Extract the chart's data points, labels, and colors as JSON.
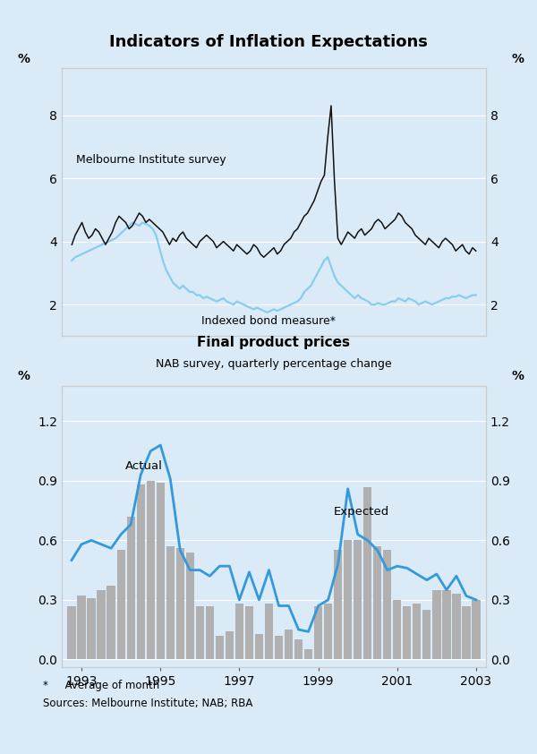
{
  "title": "Indicators of Inflation Expectations",
  "bg_color": "#daeaf7",
  "panel1": {
    "ylabel_left": "%",
    "ylabel_right": "%",
    "ylim": [
      1.0,
      9.5
    ],
    "yticks": [
      2,
      4,
      6,
      8
    ],
    "label_mi": "Melbourne Institute survey",
    "label_ib": "Indexed bond measure*",
    "mi_color": "#111111",
    "ib_color": "#87ceeb"
  },
  "panel2": {
    "title": "Final product prices",
    "subtitle": "NAB survey, quarterly percentage change",
    "ylabel_left": "%",
    "ylabel_right": "%",
    "ylim": [
      -0.04,
      1.38
    ],
    "yticks": [
      0.0,
      0.3,
      0.6,
      0.9,
      1.2
    ],
    "bar_color": "#b0b0b0",
    "line_color": "#3399dd",
    "label_actual": "Actual",
    "label_expected": "Expected"
  },
  "footnote_line1": "*     Average of month",
  "footnote_line2": "Sources: Melbourne Institute; NAB; RBA",
  "mi_x": [
    1993.0,
    1993.083,
    1993.167,
    1993.25,
    1993.333,
    1993.417,
    1993.5,
    1993.583,
    1993.667,
    1993.75,
    1993.833,
    1993.917,
    1994.0,
    1994.083,
    1994.167,
    1994.25,
    1994.333,
    1994.417,
    1994.5,
    1994.583,
    1994.667,
    1994.75,
    1994.833,
    1994.917,
    1995.0,
    1995.083,
    1995.167,
    1995.25,
    1995.333,
    1995.417,
    1995.5,
    1995.583,
    1995.667,
    1995.75,
    1995.833,
    1995.917,
    1996.0,
    1996.083,
    1996.167,
    1996.25,
    1996.333,
    1996.417,
    1996.5,
    1996.583,
    1996.667,
    1996.75,
    1996.833,
    1996.917,
    1997.0,
    1997.083,
    1997.167,
    1997.25,
    1997.333,
    1997.417,
    1997.5,
    1997.583,
    1997.667,
    1997.75,
    1997.833,
    1997.917,
    1998.0,
    1998.083,
    1998.167,
    1998.25,
    1998.333,
    1998.417,
    1998.5,
    1998.583,
    1998.667,
    1998.75,
    1998.833,
    1998.917,
    1999.0,
    1999.083,
    1999.167,
    1999.25,
    1999.333,
    1999.417,
    1999.5,
    1999.583,
    1999.667,
    1999.75,
    1999.833,
    1999.917,
    2000.0,
    2000.083,
    2000.167,
    2000.25,
    2000.333,
    2000.417,
    2000.5,
    2000.583,
    2000.667,
    2000.75,
    2000.833,
    2000.917,
    2001.0,
    2001.083,
    2001.167,
    2001.25,
    2001.333,
    2001.417,
    2001.5,
    2001.583,
    2001.667,
    2001.75,
    2001.833,
    2001.917,
    2002.0,
    2002.083,
    2002.167,
    2002.25,
    2002.333,
    2002.417,
    2002.5,
    2002.583,
    2002.667,
    2002.75,
    2002.833,
    2002.917,
    2003.0
  ],
  "mi_y": [
    3.9,
    4.2,
    4.4,
    4.6,
    4.3,
    4.1,
    4.2,
    4.4,
    4.3,
    4.1,
    3.9,
    4.1,
    4.3,
    4.6,
    4.8,
    4.7,
    4.6,
    4.4,
    4.5,
    4.7,
    4.9,
    4.8,
    4.6,
    4.7,
    4.6,
    4.5,
    4.4,
    4.3,
    4.1,
    3.9,
    4.1,
    4.0,
    4.2,
    4.3,
    4.1,
    4.0,
    3.9,
    3.8,
    4.0,
    4.1,
    4.2,
    4.1,
    4.0,
    3.8,
    3.9,
    4.0,
    3.9,
    3.8,
    3.7,
    3.9,
    3.8,
    3.7,
    3.6,
    3.7,
    3.9,
    3.8,
    3.6,
    3.5,
    3.6,
    3.7,
    3.8,
    3.6,
    3.7,
    3.9,
    4.0,
    4.1,
    4.3,
    4.4,
    4.6,
    4.8,
    4.9,
    5.1,
    5.3,
    5.6,
    5.9,
    6.1,
    7.3,
    8.3,
    5.9,
    4.1,
    3.9,
    4.1,
    4.3,
    4.2,
    4.1,
    4.3,
    4.4,
    4.2,
    4.3,
    4.4,
    4.6,
    4.7,
    4.6,
    4.4,
    4.5,
    4.6,
    4.7,
    4.9,
    4.8,
    4.6,
    4.5,
    4.4,
    4.2,
    4.1,
    4.0,
    3.9,
    4.1,
    4.0,
    3.9,
    3.8,
    4.0,
    4.1,
    4.0,
    3.9,
    3.7,
    3.8,
    3.9,
    3.7,
    3.6,
    3.8,
    3.7
  ],
  "ib_x": [
    1993.0,
    1993.083,
    1993.167,
    1993.25,
    1993.333,
    1993.417,
    1993.5,
    1993.583,
    1993.667,
    1993.75,
    1993.833,
    1993.917,
    1994.0,
    1994.083,
    1994.167,
    1994.25,
    1994.333,
    1994.417,
    1994.5,
    1994.583,
    1994.667,
    1994.75,
    1994.833,
    1994.917,
    1995.0,
    1995.083,
    1995.167,
    1995.25,
    1995.333,
    1995.417,
    1995.5,
    1995.583,
    1995.667,
    1995.75,
    1995.833,
    1995.917,
    1996.0,
    1996.083,
    1996.167,
    1996.25,
    1996.333,
    1996.417,
    1996.5,
    1996.583,
    1996.667,
    1996.75,
    1996.833,
    1996.917,
    1997.0,
    1997.083,
    1997.167,
    1997.25,
    1997.333,
    1997.417,
    1997.5,
    1997.583,
    1997.667,
    1997.75,
    1997.833,
    1997.917,
    1998.0,
    1998.083,
    1998.167,
    1998.25,
    1998.333,
    1998.417,
    1998.5,
    1998.583,
    1998.667,
    1998.75,
    1998.833,
    1998.917,
    1999.0,
    1999.083,
    1999.167,
    1999.25,
    1999.333,
    1999.417,
    1999.5,
    1999.583,
    1999.667,
    1999.75,
    1999.833,
    1999.917,
    2000.0,
    2000.083,
    2000.167,
    2000.25,
    2000.333,
    2000.417,
    2000.5,
    2000.583,
    2000.667,
    2000.75,
    2000.833,
    2000.917,
    2001.0,
    2001.083,
    2001.167,
    2001.25,
    2001.333,
    2001.417,
    2001.5,
    2001.583,
    2001.667,
    2001.75,
    2001.833,
    2001.917,
    2002.0,
    2002.083,
    2002.167,
    2002.25,
    2002.333,
    2002.417,
    2002.5,
    2002.583,
    2002.667,
    2002.75,
    2002.833,
    2002.917,
    2003.0
  ],
  "ib_y": [
    3.4,
    3.5,
    3.55,
    3.6,
    3.65,
    3.7,
    3.75,
    3.8,
    3.85,
    3.9,
    3.95,
    4.0,
    4.05,
    4.1,
    4.2,
    4.3,
    4.4,
    4.5,
    4.6,
    4.55,
    4.5,
    4.6,
    4.55,
    4.5,
    4.4,
    4.2,
    3.8,
    3.4,
    3.1,
    2.9,
    2.7,
    2.6,
    2.5,
    2.6,
    2.5,
    2.4,
    2.4,
    2.3,
    2.3,
    2.2,
    2.25,
    2.2,
    2.15,
    2.1,
    2.15,
    2.2,
    2.1,
    2.05,
    2.0,
    2.1,
    2.05,
    2.0,
    1.95,
    1.9,
    1.85,
    1.9,
    1.85,
    1.8,
    1.75,
    1.8,
    1.85,
    1.8,
    1.85,
    1.9,
    1.95,
    2.0,
    2.05,
    2.1,
    2.2,
    2.4,
    2.5,
    2.6,
    2.8,
    3.0,
    3.2,
    3.4,
    3.5,
    3.2,
    2.9,
    2.7,
    2.6,
    2.5,
    2.4,
    2.3,
    2.2,
    2.3,
    2.2,
    2.15,
    2.1,
    2.0,
    2.0,
    2.05,
    2.0,
    2.0,
    2.05,
    2.1,
    2.1,
    2.2,
    2.15,
    2.1,
    2.2,
    2.15,
    2.1,
    2.0,
    2.05,
    2.1,
    2.05,
    2.0,
    2.05,
    2.1,
    2.15,
    2.2,
    2.2,
    2.25,
    2.25,
    2.3,
    2.25,
    2.2,
    2.25,
    2.3,
    2.3
  ],
  "bar_x": [
    1992.75,
    1993.0,
    1993.25,
    1993.5,
    1993.75,
    1994.0,
    1994.25,
    1994.5,
    1994.75,
    1995.0,
    1995.25,
    1995.5,
    1995.75,
    1996.0,
    1996.25,
    1996.5,
    1996.75,
    1997.0,
    1997.25,
    1997.5,
    1997.75,
    1998.0,
    1998.25,
    1998.5,
    1998.75,
    1999.0,
    1999.25,
    1999.5,
    1999.75,
    2000.0,
    2000.25,
    2000.5,
    2000.75,
    2001.0,
    2001.25,
    2001.5,
    2001.75,
    2002.0,
    2002.25,
    2002.5,
    2002.75,
    2003.0
  ],
  "bar_y": [
    0.27,
    0.32,
    0.31,
    0.35,
    0.37,
    0.55,
    0.72,
    0.88,
    0.9,
    0.89,
    0.57,
    0.56,
    0.54,
    0.27,
    0.27,
    0.12,
    0.14,
    0.28,
    0.27,
    0.13,
    0.28,
    0.12,
    0.15,
    0.1,
    0.05,
    0.27,
    0.28,
    0.55,
    0.6,
    0.6,
    0.87,
    0.57,
    0.55,
    0.3,
    0.27,
    0.28,
    0.25,
    0.35,
    0.35,
    0.33,
    0.27,
    0.3
  ],
  "line2_x": [
    1992.75,
    1993.0,
    1993.25,
    1993.5,
    1993.75,
    1994.0,
    1994.25,
    1994.5,
    1994.75,
    1995.0,
    1995.25,
    1995.5,
    1995.75,
    1996.0,
    1996.25,
    1996.5,
    1996.75,
    1997.0,
    1997.25,
    1997.5,
    1997.75,
    1998.0,
    1998.25,
    1998.5,
    1998.75,
    1999.0,
    1999.25,
    1999.5,
    1999.75,
    2000.0,
    2000.25,
    2000.5,
    2000.75,
    2001.0,
    2001.25,
    2001.5,
    2001.75,
    2002.0,
    2002.25,
    2002.5,
    2002.75,
    2003.0
  ],
  "line2_y": [
    0.5,
    0.58,
    0.6,
    0.58,
    0.56,
    0.63,
    0.68,
    0.93,
    1.05,
    1.08,
    0.91,
    0.55,
    0.45,
    0.45,
    0.42,
    0.47,
    0.47,
    0.3,
    0.44,
    0.3,
    0.45,
    0.27,
    0.27,
    0.15,
    0.14,
    0.27,
    0.3,
    0.48,
    0.86,
    0.63,
    0.6,
    0.55,
    0.45,
    0.47,
    0.46,
    0.43,
    0.4,
    0.43,
    0.35,
    0.42,
    0.32,
    0.3
  ],
  "xlim1": [
    1992.75,
    2003.25
  ],
  "xlim2": [
    1992.5,
    2003.25
  ],
  "xticks": [
    1993,
    1995,
    1997,
    1999,
    2001,
    2003
  ]
}
